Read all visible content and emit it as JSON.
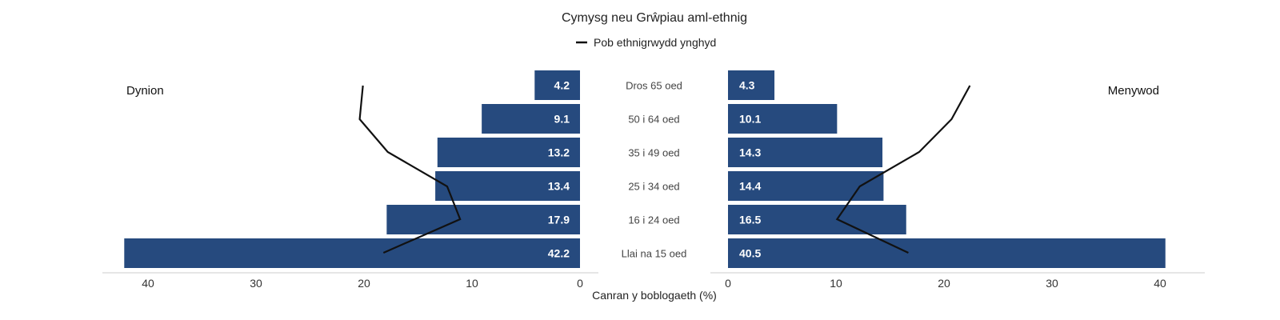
{
  "chart_data": {
    "type": "bar",
    "title": "Cymysg neu Grŵpiau aml-ethnig",
    "legend": {
      "label": "Pob ethnigrwydd ynghyd",
      "position": "top"
    },
    "left_label": "Dynion",
    "right_label": "Menywod",
    "xlabel": "Canran y boblogaeth (%)",
    "categories": [
      "Dros 65 oed",
      "50 i 64 oed",
      "35 i 49 oed",
      "25 i 34 oed",
      "16 i 24 oed",
      "Llai na 15 oed"
    ],
    "series": [
      {
        "name": "Dynion",
        "values": [
          4.2,
          9.1,
          13.2,
          13.4,
          17.9,
          42.2
        ],
        "value_labels": [
          "4.2",
          "9.1",
          "13.2",
          "13.4",
          "17.9",
          "42.2"
        ]
      },
      {
        "name": "Menywod",
        "values": [
          4.3,
          10.1,
          14.3,
          14.4,
          16.5,
          40.5
        ],
        "value_labels": [
          "4.3",
          "10.1",
          "14.3",
          "14.4",
          "16.5",
          "40.5"
        ]
      }
    ],
    "reference_line": {
      "name": "Pob ethnigrwydd ynghyd",
      "men": [
        20.1,
        20.4,
        17.8,
        12.3,
        11.1,
        18.2
      ],
      "women": [
        22.4,
        20.7,
        17.7,
        12.2,
        10.1,
        16.7
      ]
    },
    "xlim": [
      0,
      42
    ],
    "ticks": [
      "40",
      "30",
      "20",
      "10",
      "0"
    ],
    "right_ticks": [
      "0",
      "10",
      "20",
      "30",
      "40"
    ],
    "bar_color": "#264a7e",
    "line_color": "#111111",
    "grid": false
  }
}
